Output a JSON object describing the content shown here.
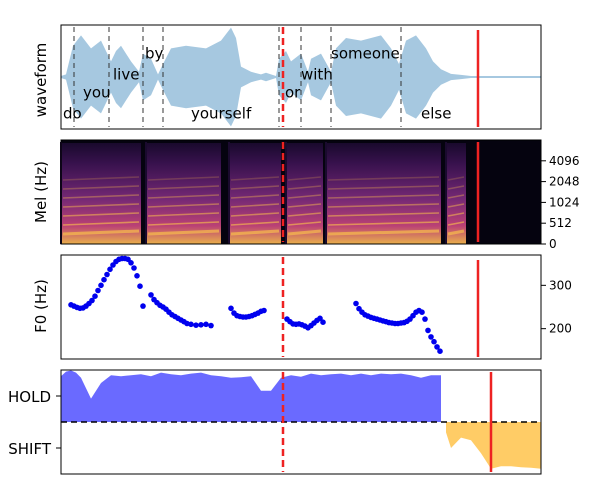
{
  "colors": {
    "waveform": "#a6c8e0",
    "boundary_dashed": "#333333",
    "marker": "#ee2222",
    "f0_points": "#0000ee",
    "hold_fill": "#5555ff",
    "shift_fill": "#ffaa00",
    "spec_dark": "#05030f",
    "spec_mid": "#7a2a7a",
    "spec_bright": "#f6b84e"
  },
  "chart_data": [
    {
      "type": "area",
      "panel": "waveform",
      "ylabel": "waveform",
      "xlim": [
        0,
        4.8
      ],
      "ylim": [
        -1,
        1
      ],
      "word_boundaries": [
        0.13,
        0.48,
        0.82,
        1.02,
        2.18,
        2.4,
        2.7,
        3.4
      ],
      "words": [
        {
          "text": "do",
          "x": 0.02,
          "y": -0.7
        },
        {
          "text": "you",
          "x": 0.22,
          "y": -0.3
        },
        {
          "text": "live",
          "x": 0.52,
          "y": 0.05
        },
        {
          "text": "by",
          "x": 0.84,
          "y": 0.45
        },
        {
          "text": "yourself",
          "x": 1.3,
          "y": -0.7
        },
        {
          "text": "or",
          "x": 2.24,
          "y": -0.3
        },
        {
          "text": "with",
          "x": 2.4,
          "y": 0.05
        },
        {
          "text": "someone",
          "x": 2.7,
          "y": 0.45
        },
        {
          "text": "else",
          "x": 3.6,
          "y": -0.7
        }
      ],
      "dashed_marker_x": 2.22,
      "solid_marker_x": 4.17,
      "envelope": {
        "x": [
          0.0,
          0.05,
          0.12,
          0.2,
          0.3,
          0.4,
          0.5,
          0.55,
          0.6,
          0.7,
          0.78,
          0.82,
          0.9,
          0.97,
          1.02,
          1.1,
          1.25,
          1.45,
          1.6,
          1.7,
          1.75,
          1.8,
          1.9,
          2.0,
          2.05,
          2.15,
          2.18,
          2.25,
          2.3,
          2.4,
          2.47,
          2.5,
          2.6,
          2.7,
          2.75,
          2.85,
          3.0,
          3.2,
          3.3,
          3.38,
          3.45,
          3.55,
          3.65,
          3.72,
          3.8,
          3.9,
          4.0,
          4.1,
          4.2,
          4.8
        ],
        "amp": [
          0.02,
          0.05,
          0.6,
          0.8,
          0.55,
          0.7,
          0.3,
          0.5,
          0.6,
          0.3,
          0.1,
          0.45,
          0.35,
          0.05,
          0.25,
          0.55,
          0.6,
          0.55,
          0.7,
          0.95,
          0.75,
          0.2,
          0.1,
          0.05,
          0.08,
          0.02,
          0.35,
          0.5,
          0.3,
          0.45,
          0.1,
          0.35,
          0.45,
          0.1,
          0.55,
          0.75,
          0.7,
          0.8,
          0.55,
          0.25,
          0.7,
          0.8,
          0.55,
          0.3,
          0.15,
          0.06,
          0.04,
          0.02,
          0.02,
          0.02
        ]
      }
    },
    {
      "type": "heatmap",
      "panel": "mel-spectrogram",
      "ylabel": "Mel (Hz)",
      "xlim": [
        0,
        4.8
      ],
      "ytick_labels": [
        "0",
        "512",
        "1024",
        "2048",
        "4096"
      ],
      "ytick_fractions": [
        0.0,
        0.2,
        0.4,
        0.6,
        0.8
      ],
      "dashed_marker_x": 2.22,
      "solid_marker_x": 4.17,
      "voiced_segments": [
        [
          0.0,
          0.8
        ],
        [
          0.85,
          1.6
        ],
        [
          1.68,
          2.2
        ],
        [
          2.25,
          2.62
        ],
        [
          2.65,
          3.8
        ],
        [
          3.85,
          4.05
        ]
      ],
      "voice_end_x": 4.2
    },
    {
      "type": "scatter",
      "panel": "f0",
      "ylabel": "F0 (Hz)",
      "xlim": [
        0,
        4.8
      ],
      "ylim": [
        130,
        370
      ],
      "yticks": [
        200,
        300
      ],
      "dashed_marker_x": 2.22,
      "solid_marker_x": 4.17,
      "x": [
        0.1,
        0.13,
        0.16,
        0.19,
        0.22,
        0.25,
        0.28,
        0.31,
        0.34,
        0.37,
        0.4,
        0.43,
        0.46,
        0.49,
        0.52,
        0.55,
        0.58,
        0.61,
        0.64,
        0.67,
        0.7,
        0.73,
        0.76,
        0.79,
        0.82,
        0.9,
        0.93,
        0.96,
        0.99,
        1.02,
        1.05,
        1.08,
        1.11,
        1.14,
        1.17,
        1.2,
        1.23,
        1.26,
        1.3,
        1.35,
        1.4,
        1.45,
        1.5,
        1.7,
        1.73,
        1.76,
        1.79,
        1.82,
        1.85,
        1.88,
        1.91,
        1.94,
        1.97,
        2.0,
        2.03,
        2.26,
        2.29,
        2.32,
        2.35,
        2.38,
        2.41,
        2.44,
        2.47,
        2.5,
        2.53,
        2.56,
        2.59,
        2.62,
        2.95,
        2.98,
        3.01,
        3.04,
        3.07,
        3.1,
        3.13,
        3.16,
        3.19,
        3.22,
        3.25,
        3.28,
        3.31,
        3.34,
        3.37,
        3.4,
        3.43,
        3.46,
        3.49,
        3.52,
        3.55,
        3.58,
        3.61,
        3.64,
        3.67,
        3.7,
        3.73,
        3.76,
        3.79
      ],
      "y": [
        255,
        252,
        249,
        247,
        248,
        252,
        258,
        265,
        275,
        288,
        300,
        313,
        325,
        337,
        347,
        355,
        360,
        362,
        362,
        360,
        352,
        340,
        322,
        298,
        252,
        278,
        267,
        260,
        254,
        250,
        245,
        238,
        232,
        228,
        224,
        220,
        216,
        212,
        210,
        208,
        209,
        210,
        207,
        247,
        236,
        230,
        228,
        227,
        227,
        228,
        230,
        233,
        236,
        240,
        242,
        222,
        216,
        211,
        210,
        211,
        209,
        206,
        202,
        207,
        213,
        219,
        224,
        215,
        258,
        246,
        238,
        232,
        229,
        226,
        224,
        222,
        220,
        218,
        216,
        214,
        213,
        212,
        212,
        213,
        214,
        217,
        222,
        230,
        238,
        242,
        238,
        222,
        196,
        181,
        170,
        158,
        148
      ]
    },
    {
      "type": "area",
      "panel": "hold-shift",
      "ytick_labels": [
        "HOLD",
        "SHIFT"
      ],
      "ylim": [
        -1,
        1
      ],
      "xlim": [
        0,
        4.8
      ],
      "threshold": 0,
      "dashed_marker_x": 2.22,
      "solid_marker_x": 4.3,
      "hold": {
        "x": [
          0.0,
          0.05,
          0.1,
          0.15,
          0.2,
          0.3,
          0.4,
          0.5,
          0.6,
          0.7,
          0.8,
          0.9,
          1.0,
          1.1,
          1.2,
          1.3,
          1.4,
          1.5,
          1.6,
          1.7,
          1.8,
          1.9,
          2.0,
          2.1,
          2.2,
          2.3,
          2.4,
          2.5,
          2.6,
          2.7,
          2.8,
          2.9,
          3.0,
          3.1,
          3.2,
          3.3,
          3.4,
          3.5,
          3.6,
          3.7,
          3.8
        ],
        "y": [
          0.88,
          0.97,
          0.99,
          0.95,
          0.85,
          0.45,
          0.75,
          0.9,
          0.88,
          0.9,
          0.92,
          0.88,
          0.95,
          0.92,
          0.9,
          0.93,
          0.95,
          0.9,
          0.88,
          0.85,
          0.86,
          0.88,
          0.6,
          0.6,
          0.85,
          0.9,
          0.87,
          0.93,
          0.9,
          0.92,
          0.93,
          0.9,
          0.93,
          0.9,
          0.93,
          0.92,
          0.93,
          0.9,
          0.85,
          0.9,
          0.9
        ]
      },
      "shift": {
        "x": [
          3.85,
          3.9,
          4.0,
          4.1,
          4.2,
          4.3,
          4.4,
          4.5,
          4.6,
          4.7,
          4.8
        ],
        "y": [
          -0.2,
          -0.5,
          -0.3,
          -0.35,
          -0.6,
          -0.9,
          -0.85,
          -0.85,
          -0.87,
          -0.88,
          -0.9
        ]
      }
    }
  ]
}
